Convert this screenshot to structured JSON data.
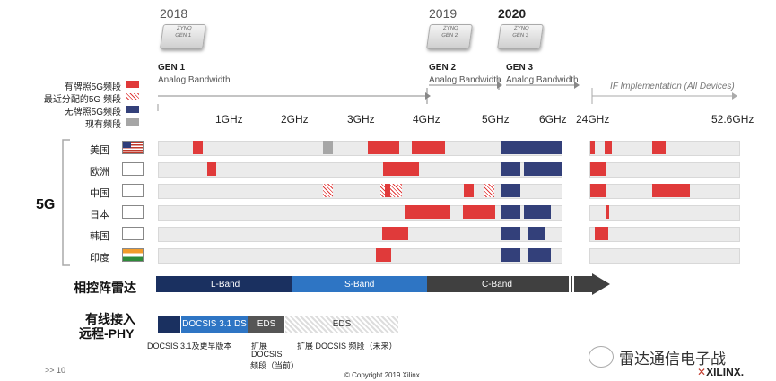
{
  "years": {
    "y2018": "2018",
    "y2019": "2019",
    "y2020": "2020"
  },
  "chips": {
    "gen1": {
      "brand": "ZYNQ",
      "gen": "GEN 1"
    },
    "gen2": {
      "brand": "ZYNQ",
      "gen": "GEN 2"
    },
    "gen3": {
      "brand": "ZYNQ",
      "gen": "GEN 3"
    }
  },
  "gens": {
    "g1": {
      "title": "GEN 1",
      "sub": "Analog Bandwidth"
    },
    "g2": {
      "title": "GEN 2",
      "sub": "Analog Bandwidth"
    },
    "g3": {
      "title": "GEN 3",
      "sub": "Analog Bandwidth"
    },
    "ifimpl": "IF Implementation (All Devices)"
  },
  "legend": [
    {
      "label": "有牌照5G频段",
      "color": "#e03a3a"
    },
    {
      "label": "最近分配的5G 频段",
      "color": "hatch"
    },
    {
      "label": "无牌照5G频段",
      "color": "#33407a"
    },
    {
      "label": "现有频段",
      "color": "#a6a6a6"
    }
  ],
  "freq_labels": [
    "1GHz",
    "2GHz",
    "3GHz",
    "4GHz",
    "5GHz",
    "6GHz",
    "24GHz",
    "52.6GHz"
  ],
  "section_label": "5G",
  "countries": [
    {
      "name": "美国",
      "flag": "us"
    },
    {
      "name": "欧洲",
      "flag": "eu"
    },
    {
      "name": "中国",
      "flag": "cn"
    },
    {
      "name": "日本",
      "flag": "jp"
    },
    {
      "name": "韩国",
      "flag": "kr"
    },
    {
      "name": "印度",
      "flag": "in"
    }
  ],
  "colors": {
    "licensed": "#e03a3a",
    "unlicensed": "#33407a",
    "existing": "#a6a6a6"
  },
  "phased": {
    "title": "相控阵雷达",
    "bands": [
      "L-Band",
      "S-Band",
      "C-Band"
    ]
  },
  "wired": {
    "title_line1": "有线接入",
    "title_line2": "远程-PHY",
    "docsis": "DOCSIS 3.1 DS",
    "eds1": "EDS",
    "eds2": "EDS"
  },
  "wired_notes": {
    "a": "DOCSIS 3.1及更早版本",
    "b1": "扩展",
    "b2": "DOCSIS",
    "b3": "频段（当前）",
    "c": "扩展 DOCSIS 频段（未来）"
  },
  "footer": {
    "page": ">> 10",
    "copyright": "© Copyright 2019 Xilinx",
    "wechat": "雷达通信电子战",
    "brand": "XILINX."
  }
}
